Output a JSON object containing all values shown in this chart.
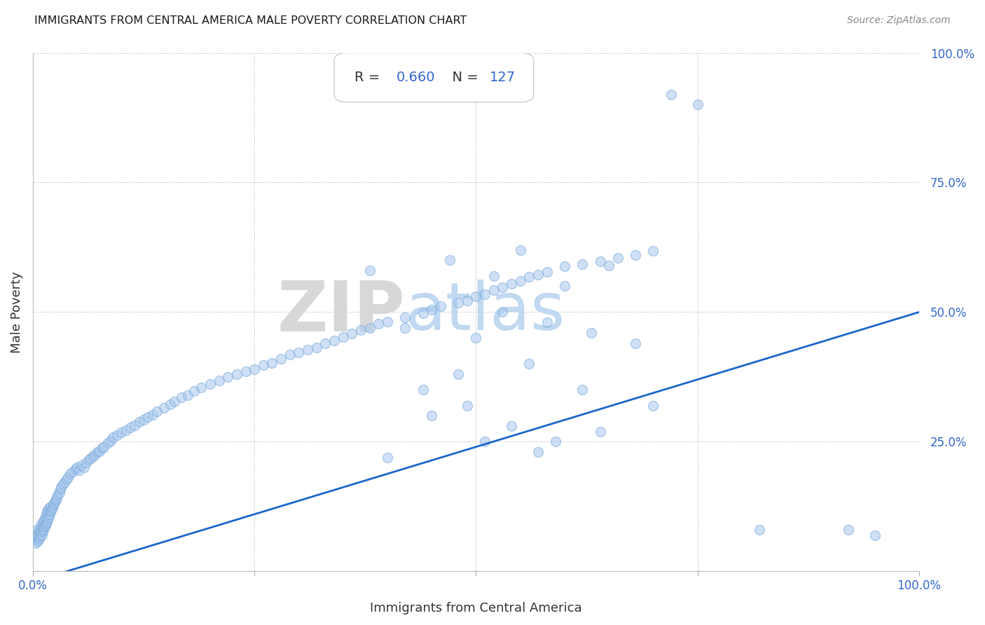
{
  "title": "IMMIGRANTS FROM CENTRAL AMERICA MALE POVERTY CORRELATION CHART",
  "source": "Source: ZipAtlas.com",
  "xlabel": "Immigrants from Central America",
  "ylabel": "Male Poverty",
  "R": 0.66,
  "N": 127,
  "xlim": [
    0,
    1.0
  ],
  "ylim": [
    0,
    1.0
  ],
  "scatter_color": "#a8c8f0",
  "scatter_edgecolor": "#7aaad8",
  "line_color": "#1a66cc",
  "watermark_zip_color": "#d8d8d8",
  "watermark_atlas_color": "#c0d8f0",
  "title_color": "#1a1a1a",
  "axis_label_color": "#333333",
  "tick_color": "#3366cc",
  "background_color": "#ffffff",
  "scatter_alpha": 0.55,
  "scatter_size": 100,
  "regression_x0": 0.0,
  "regression_y0": -0.02,
  "regression_x1": 1.0,
  "regression_y1": 0.5,
  "scatter_x": [
    0.002,
    0.003,
    0.004,
    0.005,
    0.005,
    0.006,
    0.006,
    0.007,
    0.007,
    0.008,
    0.008,
    0.009,
    0.009,
    0.01,
    0.01,
    0.011,
    0.011,
    0.012,
    0.012,
    0.013,
    0.013,
    0.014,
    0.014,
    0.015,
    0.015,
    0.016,
    0.016,
    0.017,
    0.017,
    0.018,
    0.018,
    0.019,
    0.02,
    0.02,
    0.021,
    0.022,
    0.023,
    0.024,
    0.025,
    0.026,
    0.027,
    0.028,
    0.03,
    0.031,
    0.032,
    0.034,
    0.036,
    0.038,
    0.04,
    0.042,
    0.045,
    0.048,
    0.05,
    0.052,
    0.055,
    0.058,
    0.06,
    0.063,
    0.065,
    0.068,
    0.07,
    0.073,
    0.075,
    0.078,
    0.08,
    0.085,
    0.088,
    0.09,
    0.095,
    0.1,
    0.105,
    0.11,
    0.115,
    0.12,
    0.125,
    0.13,
    0.135,
    0.14,
    0.148,
    0.155,
    0.16,
    0.168,
    0.175,
    0.182,
    0.19,
    0.2,
    0.21,
    0.22,
    0.23,
    0.24,
    0.25,
    0.26,
    0.27,
    0.28,
    0.29,
    0.3,
    0.31,
    0.32,
    0.33,
    0.34,
    0.35,
    0.36,
    0.37,
    0.38,
    0.39,
    0.4,
    0.42,
    0.44,
    0.45,
    0.46,
    0.48,
    0.49,
    0.5,
    0.51,
    0.52,
    0.53,
    0.54,
    0.55,
    0.56,
    0.57,
    0.58,
    0.6,
    0.62,
    0.64,
    0.66,
    0.68,
    0.7
  ],
  "scatter_y": [
    0.06,
    0.055,
    0.07,
    0.065,
    0.08,
    0.058,
    0.072,
    0.062,
    0.078,
    0.068,
    0.082,
    0.075,
    0.09,
    0.07,
    0.085,
    0.078,
    0.095,
    0.08,
    0.092,
    0.085,
    0.1,
    0.088,
    0.105,
    0.092,
    0.11,
    0.095,
    0.115,
    0.1,
    0.118,
    0.105,
    0.122,
    0.11,
    0.115,
    0.125,
    0.118,
    0.122,
    0.128,
    0.132,
    0.135,
    0.138,
    0.142,
    0.148,
    0.152,
    0.158,
    0.162,
    0.168,
    0.172,
    0.178,
    0.182,
    0.188,
    0.192,
    0.198,
    0.2,
    0.195,
    0.205,
    0.2,
    0.21,
    0.215,
    0.218,
    0.222,
    0.225,
    0.23,
    0.232,
    0.238,
    0.24,
    0.248,
    0.252,
    0.258,
    0.262,
    0.268,
    0.272,
    0.278,
    0.282,
    0.288,
    0.292,
    0.298,
    0.302,
    0.308,
    0.315,
    0.322,
    0.328,
    0.335,
    0.34,
    0.348,
    0.355,
    0.362,
    0.368,
    0.375,
    0.38,
    0.385,
    0.39,
    0.398,
    0.402,
    0.41,
    0.418,
    0.422,
    0.428,
    0.432,
    0.44,
    0.445,
    0.452,
    0.458,
    0.465,
    0.47,
    0.478,
    0.482,
    0.49,
    0.498,
    0.505,
    0.512,
    0.518,
    0.522,
    0.53,
    0.535,
    0.542,
    0.548,
    0.555,
    0.56,
    0.568,
    0.572,
    0.578,
    0.588,
    0.592,
    0.598,
    0.605,
    0.61,
    0.618
  ],
  "outlier_x": [
    0.38,
    0.47,
    0.52,
    0.55,
    0.6,
    0.65,
    0.72,
    0.75,
    0.82,
    0.92,
    0.95,
    0.42,
    0.5,
    0.53,
    0.58,
    0.63,
    0.68,
    0.44,
    0.48,
    0.56,
    0.62,
    0.7,
    0.45,
    0.49,
    0.54,
    0.59,
    0.64,
    0.4,
    0.51,
    0.57
  ],
  "outlier_y": [
    0.58,
    0.6,
    0.57,
    0.62,
    0.55,
    0.59,
    0.92,
    0.9,
    0.08,
    0.08,
    0.07,
    0.47,
    0.45,
    0.5,
    0.48,
    0.46,
    0.44,
    0.35,
    0.38,
    0.4,
    0.35,
    0.32,
    0.3,
    0.32,
    0.28,
    0.25,
    0.27,
    0.22,
    0.25,
    0.23
  ]
}
